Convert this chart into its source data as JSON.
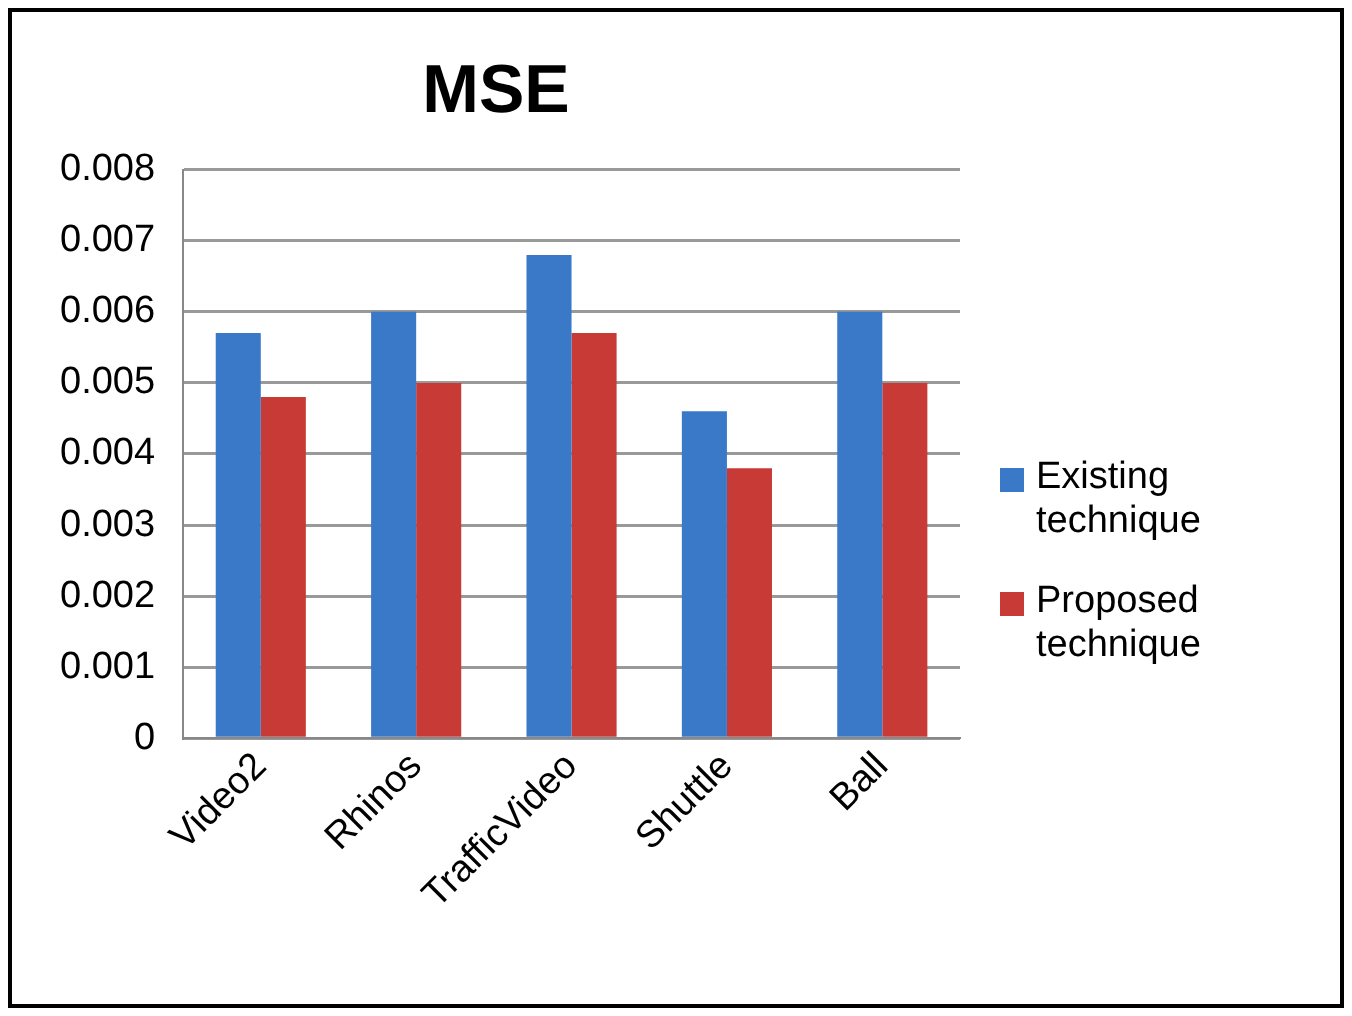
{
  "chart_data": {
    "type": "bar",
    "title": "MSE",
    "categories": [
      "Video2",
      "Rhinos",
      "TrafficVideo",
      "Shuttle",
      "Ball"
    ],
    "series": [
      {
        "name": "Existing technique",
        "color": "#3a78c8",
        "values": [
          0.0057,
          0.006,
          0.0068,
          0.0046,
          0.006
        ]
      },
      {
        "name": "Proposed technique",
        "color": "#c83a36",
        "values": [
          0.0048,
          0.005,
          0.0057,
          0.0038,
          0.005
        ]
      }
    ],
    "ylim": [
      0,
      0.008
    ],
    "yticks": [
      0,
      0.001,
      0.002,
      0.003,
      0.004,
      0.005,
      0.006,
      0.007,
      0.008
    ],
    "grid": "y",
    "legend": "right"
  }
}
